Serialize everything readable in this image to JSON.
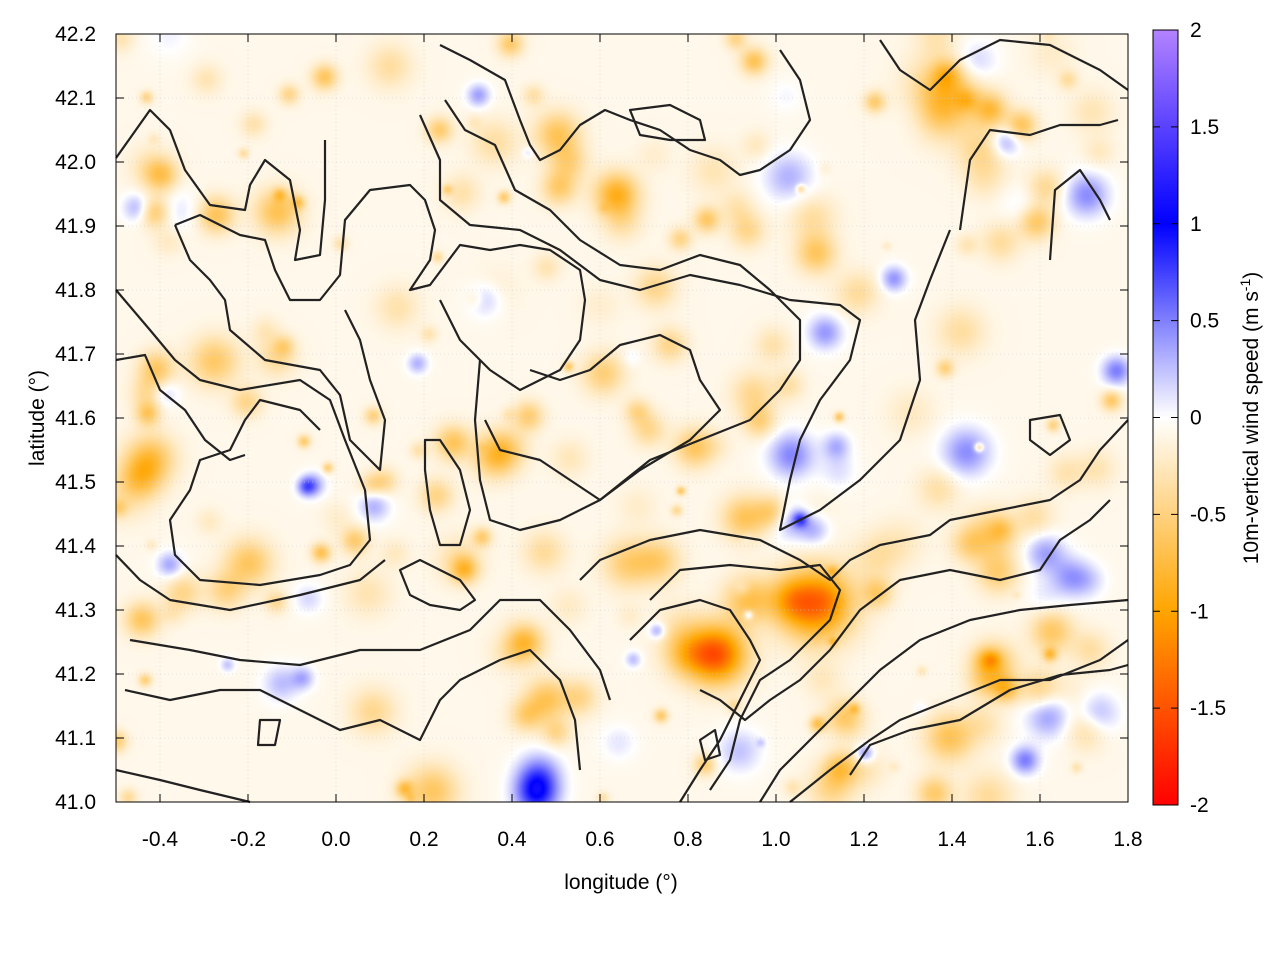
{
  "chart_data": {
    "type": "heatmap",
    "overlay": "contour",
    "xlabel": "longitude (°)",
    "ylabel": "latitude (°)",
    "xlim": [
      -0.5,
      1.8
    ],
    "ylim": [
      41.0,
      42.2
    ],
    "xticks": [
      "-0.4",
      "-0.2",
      "0.0",
      "0.2",
      "0.4",
      "0.6",
      "0.8",
      "1.0",
      "1.2",
      "1.4",
      "1.6",
      "1.8"
    ],
    "xtick_values": [
      -0.4,
      -0.2,
      0.0,
      0.2,
      0.4,
      0.6,
      0.8,
      1.0,
      1.2,
      1.4,
      1.6,
      1.8
    ],
    "yticks": [
      "41.0",
      "41.1",
      "41.2",
      "41.3",
      "41.4",
      "41.5",
      "41.6",
      "41.7",
      "41.8",
      "41.9",
      "42.0",
      "42.1",
      "42.2"
    ],
    "ytick_values": [
      41.0,
      41.1,
      41.2,
      41.3,
      41.4,
      41.5,
      41.6,
      41.7,
      41.8,
      41.9,
      42.0,
      42.1,
      42.2
    ],
    "grid": true,
    "colorbar": {
      "label_main": "10m-vertical wind speed (m s",
      "label_sup": "-1",
      "label_end": ")",
      "range": [
        -2,
        2
      ],
      "ticks": [
        "2",
        "1.5",
        "1",
        "0.5",
        "0",
        "-0.5",
        "-1",
        "-1.5",
        "-2"
      ],
      "tick_values": [
        2,
        1.5,
        1,
        0.5,
        0,
        -0.5,
        -1,
        -1.5,
        -2
      ],
      "colors": {
        "-2": "#ff0000",
        "-1": "#ffa500",
        "0": "#ffffff",
        "1": "#0000ff",
        "2": "#b383ff"
      }
    },
    "contour_color": "#222222"
  }
}
